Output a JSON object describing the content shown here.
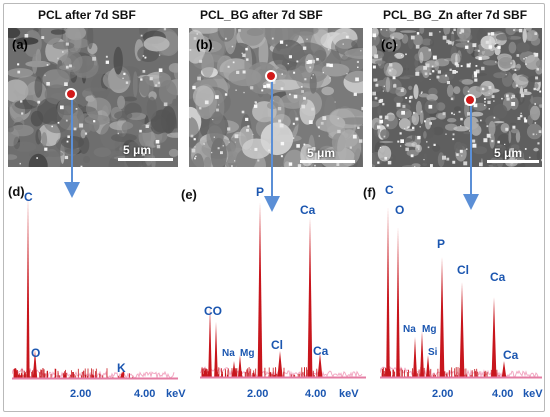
{
  "panels": [
    {
      "title": "PCL after 7d SBF",
      "tag": "(a)",
      "scale": "5 μm",
      "spectrum_tag": "(d)",
      "peaks": [
        "C",
        "O",
        "K"
      ],
      "ticks": [
        "2.00",
        "4.00",
        "keV"
      ]
    },
    {
      "title": "PCL_BG after 7d SBF",
      "tag": "(b)",
      "scale": "5 μm",
      "spectrum_tag": "(e)",
      "peaks": [
        "P",
        "Ca",
        "CO",
        "Na",
        "Mg",
        "Cl",
        "Ca"
      ],
      "ticks": [
        "2.00",
        "4.00",
        "keV"
      ]
    },
    {
      "title": "PCL_BG_Zn after 7d SBF",
      "tag": "(c)",
      "scale": "5 μm",
      "spectrum_tag": "(f)",
      "peaks": [
        "C",
        "O",
        "P",
        "Cl",
        "Ca",
        "Na",
        "Mg",
        "Si",
        "Ca"
      ],
      "ticks": [
        "2.00",
        "4.00",
        "keV"
      ]
    }
  ],
  "colors": {
    "spectrum_fill": "#c8161d",
    "spectrum_base": "#f2a9c3",
    "label": "#1b56b0",
    "arrow": "#5b8fd6",
    "spot": "#d21a1a"
  }
}
